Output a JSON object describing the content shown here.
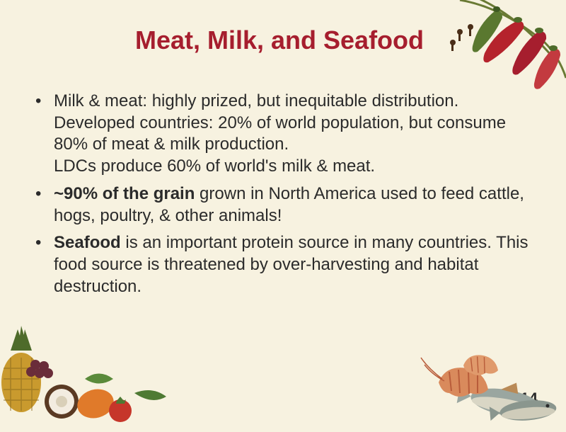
{
  "slide": {
    "title": "Meat, Milk, and Seafood",
    "title_color": "#a61e2e",
    "background_color": "#f7f2e0",
    "text_color": "#2b2b2b",
    "title_fontsize": 36,
    "body_fontsize": 24,
    "page_number": "14",
    "bullets": [
      {
        "segments": [
          {
            "text": "Milk & meat: highly prized, but inequitable distribution. Developed countries: 20% of world population, but consume 80% of meat & milk production.\nLDCs produce 60% of world's milk & meat.",
            "bold": false
          }
        ]
      },
      {
        "segments": [
          {
            "text": "~90% of the grain",
            "bold": true
          },
          {
            "text": " grown in North America used to feed cattle, hogs, poultry, & other animals!",
            "bold": false
          }
        ]
      },
      {
        "segments": [
          {
            "text": "Seafood",
            "bold": true
          },
          {
            "text": " is an important protein source in many countries.  This food source is threatened by over-harvesting and habitat destruction.",
            "bold": false
          }
        ]
      }
    ]
  },
  "decorations": {
    "top_right": {
      "type": "chili-peppers-and-spices",
      "colors": {
        "chili_red": "#b5232c",
        "chili_green": "#5a782f",
        "clove_brown": "#4a2e18",
        "stem": "#6a7a34"
      }
    },
    "bottom_left": {
      "type": "tropical-fruits-and-vegetables",
      "colors": {
        "pineapple": "#c99a2e",
        "pineapple_leaf": "#4e6b2a",
        "mango": "#e07a2a",
        "coconut_shell": "#5a3a23",
        "coconut_flesh": "#f3ece0",
        "grapes": "#6a2d3a",
        "tomato": "#c6362a",
        "leaf": "#4e7a33"
      }
    },
    "bottom_right": {
      "type": "seafood",
      "colors": {
        "fish_body": "#9aa6a0",
        "fish_belly": "#d9d6c5",
        "fish_fin": "#b98a56",
        "shrimp": "#d98a5c",
        "shrimp_stripe": "#b85c3a"
      }
    }
  }
}
